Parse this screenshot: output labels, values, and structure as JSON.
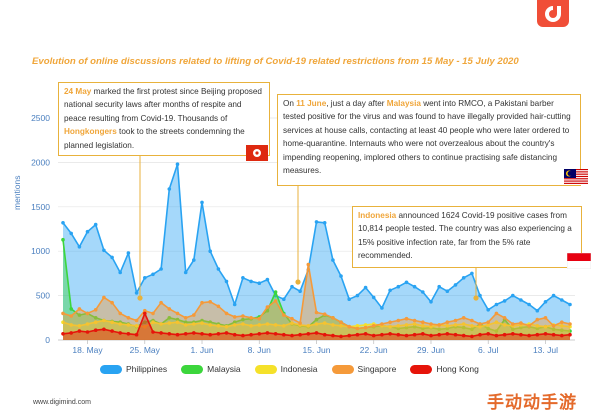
{
  "title": "Evolution of online discussions related to lifting of Covid-19 related restrictions from 15 May - 15 July 2020",
  "footer": "www.digimind.com",
  "watermark": "手动动手游",
  "annotations": {
    "hongkong": {
      "date": "24 May",
      "t1": " marked the first protest since Beijing proposed national security laws after months of respite and peace resulting from Covid-19. Thousands of ",
      "hl": "Hongkongers",
      "t2": " took to the streets condemning the planned legislation."
    },
    "malaysia": {
      "t0": "On ",
      "date": "11 June",
      "t1": ",  just a day after ",
      "hl": "Malaysia",
      "t2": " went into RMCO, a Pakistani barber tested positive for the virus and was found to have illegally provided hair-cutting services at house calls, contacting at least 40 people who were later ordered to home-quarantine. Internauts who were not overzealous about the country's impending reopening, implored others to continue practising safe distancing measures."
    },
    "indonesia": {
      "hl": "Indonesia",
      "t1": " announced 1624 Covid-19 positive cases from 10,814 people tested. The country was also experiencing a 15% positive infection rate, far from the 5% rate recommended."
    }
  },
  "chart_data": {
    "type": "area",
    "ylabel": "mentions",
    "ylim": [
      0,
      2500
    ],
    "yticks": [
      0,
      500,
      1000,
      1500,
      2000,
      2500
    ],
    "x_tick_labels": [
      "18. May",
      "25. May",
      "1. Jun",
      "8. Jun",
      "15. Jun",
      "22. Jun",
      "29. Jun",
      "6. Jul",
      "13. Jul"
    ],
    "x_tick_days": [
      3,
      10,
      17,
      24,
      31,
      38,
      45,
      52,
      59
    ],
    "x_start": "15 May 2020",
    "x_step": "1 day",
    "grid": "horizontal",
    "legend_position": "bottom",
    "series": [
      {
        "name": "Philippines",
        "color": "#29a3f2",
        "values": [
          1320,
          1200,
          1050,
          1220,
          1300,
          1010,
          930,
          760,
          980,
          530,
          700,
          740,
          800,
          1700,
          1980,
          760,
          900,
          1550,
          1000,
          800,
          660,
          400,
          700,
          660,
          640,
          680,
          500,
          460,
          600,
          550,
          790,
          1330,
          1320,
          900,
          720,
          460,
          500,
          590,
          480,
          360,
          560,
          600,
          650,
          600,
          540,
          430,
          600,
          550,
          620,
          700,
          750,
          500,
          340,
          400,
          440,
          500,
          450,
          400,
          330,
          430,
          500,
          450,
          400
        ]
      },
      {
        "name": "Malaysia",
        "color": "#3cd63c",
        "values": [
          1130,
          350,
          280,
          300,
          250,
          220,
          210,
          200,
          180,
          150,
          200,
          220,
          180,
          250,
          230,
          200,
          200,
          220,
          200,
          180,
          160,
          200,
          230,
          240,
          260,
          330,
          540,
          300,
          180,
          160,
          150,
          230,
          280,
          250,
          200,
          150,
          130,
          140,
          150,
          160,
          150,
          130,
          140,
          150,
          130,
          140,
          120,
          130,
          150,
          140,
          120,
          180,
          130,
          100,
          230,
          120,
          140,
          150,
          130,
          150,
          120,
          110,
          100
        ]
      },
      {
        "name": "Indonesia",
        "color": "#f5e12a",
        "values": [
          200,
          170,
          160,
          180,
          200,
          220,
          200,
          180,
          170,
          160,
          150,
          200,
          180,
          190,
          200,
          170,
          180,
          190,
          170,
          160,
          150,
          170,
          180,
          160,
          170,
          180,
          170,
          160,
          190,
          170,
          160,
          180,
          190,
          170,
          160,
          150,
          160,
          170,
          180,
          160,
          150,
          160,
          170,
          180,
          160,
          150,
          170,
          160,
          170,
          180,
          160,
          150,
          170,
          200,
          170,
          160,
          170,
          180,
          160,
          150,
          170,
          160,
          150
        ]
      },
      {
        "name": "Singapore",
        "color": "#f59a3a",
        "values": [
          300,
          270,
          350,
          300,
          340,
          480,
          420,
          300,
          250,
          220,
          330,
          300,
          420,
          350,
          300,
          250,
          280,
          420,
          430,
          380,
          300,
          260,
          270,
          250,
          240,
          370,
          440,
          280,
          240,
          190,
          850,
          310,
          290,
          250,
          200,
          150,
          130,
          140,
          160,
          180,
          200,
          220,
          240,
          220,
          200,
          180,
          170,
          200,
          220,
          250,
          220,
          180,
          200,
          300,
          250,
          180,
          190,
          160,
          230,
          250,
          160,
          200,
          180
        ]
      },
      {
        "name": "Hong Kong",
        "color": "#e6140a",
        "values": [
          70,
          80,
          100,
          90,
          110,
          120,
          100,
          80,
          70,
          60,
          300,
          90,
          80,
          70,
          60,
          70,
          80,
          70,
          60,
          70,
          80,
          60,
          50,
          60,
          70,
          80,
          70,
          60,
          50,
          60,
          70,
          80,
          60,
          50,
          40,
          50,
          60,
          70,
          50,
          60,
          70,
          60,
          50,
          60,
          70,
          50,
          60,
          70,
          60,
          50,
          40,
          60,
          70,
          50,
          60,
          70,
          60,
          50,
          60,
          70,
          60,
          50,
          60
        ]
      }
    ]
  }
}
